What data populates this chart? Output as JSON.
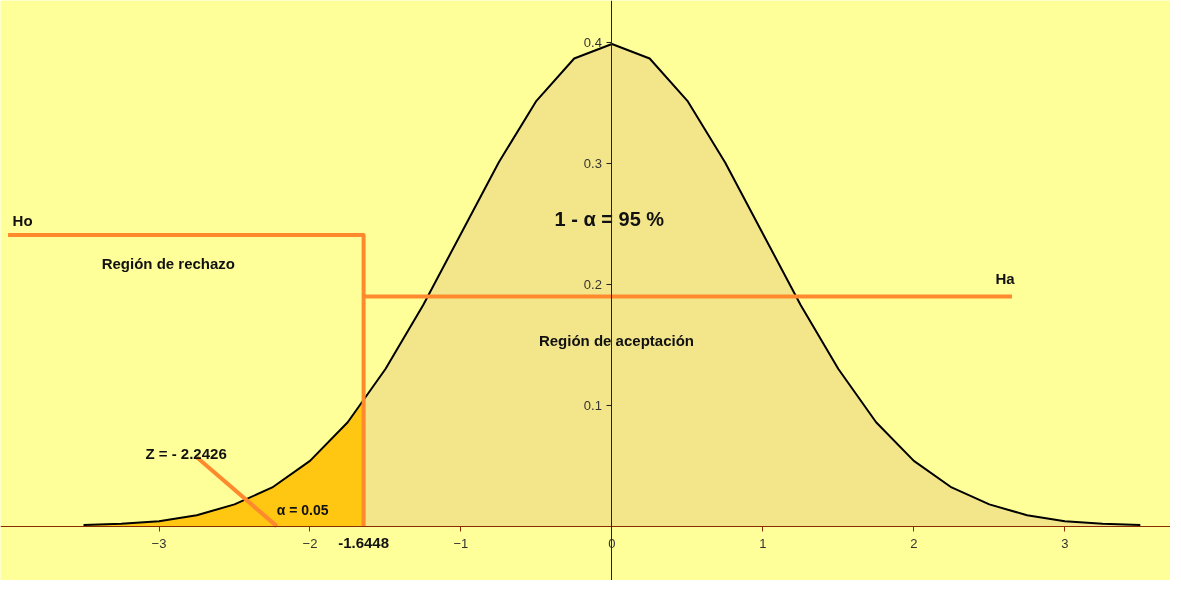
{
  "chart_data": {
    "type": "area",
    "xlim": [
      -4.05,
      3.7
    ],
    "ylim": [
      -0.045,
      0.435
    ],
    "xticks": [
      {
        "value": -3,
        "label": "−3"
      },
      {
        "value": -2,
        "label": "−2"
      },
      {
        "value": -1,
        "label": "−1"
      },
      0,
      1,
      2,
      3
    ],
    "yticks": [
      0.1,
      0.2,
      0.3,
      0.4
    ],
    "grid": false,
    "series": [
      {
        "color": "#f3e68a",
        "x": [
          -3.5,
          -3.25,
          -3,
          -2.75,
          -2.5,
          -2.25,
          -2,
          -1.75,
          -1.5,
          -1.25,
          -1,
          -0.75,
          -0.5,
          -0.25,
          0,
          0.25,
          0.5,
          0.75,
          1,
          1.25,
          1.5,
          1.75,
          2,
          2.25,
          2.5,
          2.75,
          3,
          3.25,
          3.5
        ],
        "values": [
          0.001,
          0.002,
          0.004,
          0.009,
          0.018,
          0.032,
          0.054,
          0.086,
          0.13,
          0.183,
          0.242,
          0.301,
          0.352,
          0.387,
          0.399,
          0.387,
          0.352,
          0.301,
          0.242,
          0.183,
          0.13,
          0.086,
          0.054,
          0.032,
          0.018,
          0.009,
          0.004,
          0.002,
          0.001
        ]
      },
      {
        "color": "#ffc612",
        "x": [
          -3.5,
          -3.25,
          -3,
          -2.75,
          -2.5,
          -2.25,
          -2,
          -1.8,
          -1.6448
        ],
        "values": [
          0.001,
          0.002,
          0.004,
          0.009,
          0.018,
          0.032,
          0.054,
          0.079,
          0.103
        ]
      },
      {
        "type": "line",
        "color": "#ff8a2e",
        "x": [
          -4.0,
          -1.6448,
          -1.6448
        ],
        "values": [
          0.241,
          0.241,
          0
        ]
      },
      {
        "type": "line",
        "color": "#ff8a2e",
        "x": [
          -1.6448,
          2.65
        ],
        "values": [
          0.19,
          0.19
        ]
      },
      {
        "type": "line",
        "color": "#ff8a2e",
        "x": [
          -2.75,
          -2.22
        ],
        "values": [
          0.057,
          0
        ]
      }
    ],
    "annotations": [
      "Ho",
      "Región de rechazo",
      "1 - α = 95 %",
      "Ha",
      "Región de aceptación",
      "Z = - 2.2426",
      "α = 0.05",
      {
        "text": "-1.6448",
        "x": -1.6448,
        "y": 0
      }
    ]
  }
}
